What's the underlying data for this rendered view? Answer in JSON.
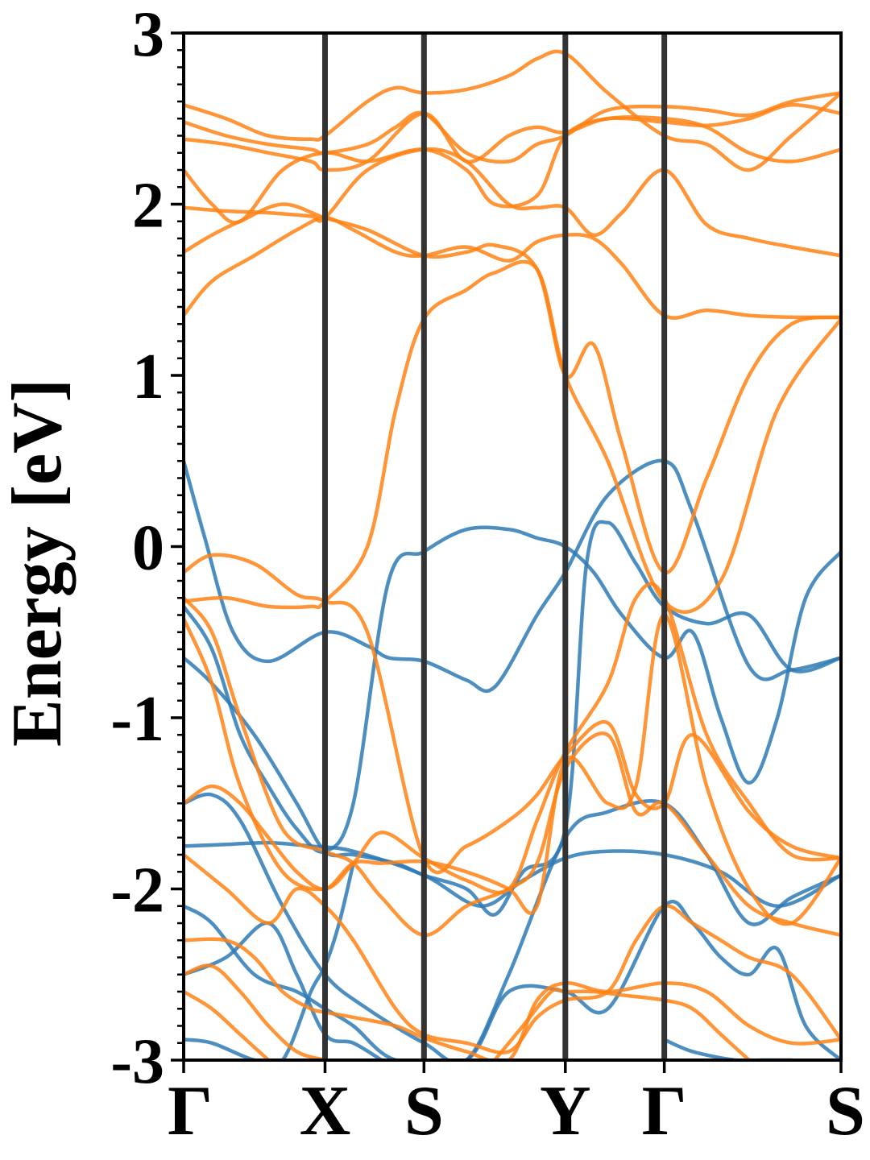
{
  "chart_data": {
    "type": "line",
    "ylabel": "Energy [eV]",
    "xlabel": "",
    "ylim": [
      -3,
      3
    ],
    "yticks": [
      "3",
      "2",
      "1",
      "0",
      "-1",
      "-2",
      "-3"
    ],
    "yticks_values": [
      3,
      2,
      1,
      0,
      -1,
      -2,
      -3
    ],
    "x_high_symmetry": [
      {
        "label": "Γ",
        "x": 0.0
      },
      {
        "label": "X",
        "x": 1.0
      },
      {
        "label": "S",
        "x": 1.7
      },
      {
        "label": "Y",
        "x": 2.7
      },
      {
        "label": "Γ",
        "x": 3.4
      },
      {
        "label": "S",
        "x": 4.65
      }
    ],
    "xlim": [
      0.0,
      4.65
    ],
    "grid": false,
    "colors": {
      "valence": "#2e7ab6",
      "conduction": "#ff8214",
      "kline": "#333333"
    },
    "series": [
      {
        "group": "valence",
        "x": [
          0.0,
          0.15,
          0.35,
          0.6,
          1.0,
          1.3,
          1.45,
          1.7,
          2.0,
          2.2,
          2.5,
          2.7,
          3.0,
          3.4,
          3.6,
          4.0,
          4.3,
          4.65
        ],
        "y": [
          0.5,
          0.05,
          -0.5,
          -0.67,
          -0.5,
          -0.58,
          -0.65,
          -0.67,
          -0.78,
          -0.82,
          -0.4,
          -0.15,
          0.3,
          0.5,
          0.2,
          -0.7,
          -0.72,
          -0.65
        ]
      },
      {
        "group": "valence",
        "x": [
          0.0,
          0.2,
          0.4,
          0.6,
          0.8,
          1.0,
          1.2,
          1.45,
          1.7,
          2.0,
          2.3,
          2.5,
          2.7,
          2.9,
          3.1,
          3.4,
          3.6,
          3.8,
          4.0,
          4.2,
          4.4,
          4.65
        ],
        "y": [
          -0.35,
          -0.6,
          -1.1,
          -1.4,
          -1.65,
          -1.78,
          -1.5,
          -0.2,
          -0.03,
          0.1,
          0.1,
          0.05,
          0.0,
          -0.15,
          -0.4,
          -0.65,
          -0.5,
          -1.0,
          -1.38,
          -1.0,
          -0.3,
          -0.03
        ]
      },
      {
        "group": "valence",
        "x": [
          0.0,
          0.2,
          0.5,
          0.8,
          1.0,
          1.2,
          1.5,
          1.7,
          2.0,
          2.2,
          2.4,
          2.7,
          2.85,
          3.0,
          3.2,
          3.4,
          3.7,
          4.0,
          4.3,
          4.65
        ],
        "y": [
          -0.65,
          -0.8,
          -1.1,
          -1.5,
          -1.78,
          -1.8,
          -1.85,
          -1.92,
          -2.0,
          -2.15,
          -1.9,
          -1.65,
          -0.1,
          0.14,
          -0.1,
          -0.35,
          -0.45,
          -0.4,
          -0.72,
          -0.65
        ]
      },
      {
        "group": "valence",
        "x": [
          0.0,
          0.3,
          0.6,
          0.9,
          1.2,
          1.7,
          2.1,
          2.4,
          2.7,
          3.0,
          3.4,
          3.8,
          4.2,
          4.65
        ],
        "y": [
          -1.75,
          -1.74,
          -1.73,
          -1.75,
          -1.78,
          -1.92,
          -2.1,
          -1.95,
          -1.82,
          -1.78,
          -1.8,
          -1.9,
          -2.1,
          -1.92
        ]
      },
      {
        "group": "valence",
        "x": [
          0.0,
          0.2,
          0.4,
          0.7,
          1.0,
          1.3,
          1.7,
          2.0,
          2.3,
          2.7,
          3.0,
          3.4,
          3.7,
          4.0,
          4.3,
          4.65
        ],
        "y": [
          -1.5,
          -1.45,
          -1.6,
          -2.1,
          -2.5,
          -2.7,
          -2.9,
          -3.0,
          -2.5,
          -1.7,
          -1.55,
          -1.5,
          -1.8,
          -2.2,
          -2.05,
          -1.92
        ]
      },
      {
        "group": "valence",
        "x": [
          0.0,
          0.2,
          0.5,
          0.8,
          1.0,
          1.2,
          1.5,
          2.0,
          2.3,
          2.7,
          3.0,
          3.4,
          3.6,
          3.8,
          4.0,
          4.2,
          4.4,
          4.65
        ],
        "y": [
          -2.1,
          -2.2,
          -2.5,
          -2.6,
          -2.7,
          -2.8,
          -3.0,
          -3.0,
          -2.6,
          -2.6,
          -2.7,
          -2.1,
          -2.2,
          -2.4,
          -2.5,
          -2.35,
          -2.8,
          -3.0
        ]
      },
      {
        "group": "valence",
        "x": [
          0.0,
          0.3,
          0.6,
          0.8,
          1.0,
          1.2,
          1.4
        ],
        "y": [
          -2.5,
          -2.4,
          -2.2,
          -2.5,
          -2.85,
          -2.9,
          -3.0
        ]
      },
      {
        "group": "valence",
        "x": [
          0.0,
          0.2,
          0.5,
          0.7,
          0.9,
          1.0,
          1.1,
          1.2
        ],
        "y": [
          -2.88,
          -2.9,
          -3.0,
          -3.0,
          -2.6,
          -2.45,
          -2.2,
          -1.85
        ]
      },
      {
        "group": "valence",
        "x": [
          3.4,
          3.6,
          3.9,
          4.1,
          4.3
        ],
        "y": [
          -2.88,
          -2.95,
          -3.0,
          -3.0,
          -3.0
        ]
      },
      {
        "group": "conduction",
        "x": [
          0.0,
          0.3,
          0.6,
          0.9,
          1.0,
          1.3,
          1.5,
          1.7,
          2.0,
          2.2,
          2.5,
          2.7,
          3.0,
          3.4,
          3.8,
          4.2,
          4.65
        ],
        "y": [
          -0.32,
          -0.3,
          -0.35,
          -0.35,
          -0.32,
          0.0,
          0.8,
          1.33,
          1.5,
          1.6,
          1.62,
          1.0,
          0.5,
          -0.32,
          -0.2,
          0.8,
          1.33
        ]
      },
      {
        "group": "conduction",
        "x": [
          0.0,
          0.2,
          0.5,
          0.8,
          1.0,
          1.2,
          1.5,
          1.7,
          2.0,
          2.3,
          2.5,
          2.7,
          2.9,
          3.1,
          3.4,
          3.7,
          4.0,
          4.3,
          4.65
        ],
        "y": [
          1.35,
          1.55,
          1.7,
          1.85,
          1.92,
          1.85,
          1.72,
          1.7,
          1.75,
          1.67,
          1.78,
          1.82,
          1.8,
          1.65,
          1.35,
          1.38,
          1.35,
          1.34,
          1.34
        ]
      },
      {
        "group": "conduction",
        "x": [
          0.0,
          0.2,
          0.4,
          0.7,
          1.0,
          1.3,
          1.7,
          2.0,
          2.2,
          2.5,
          2.7,
          2.9,
          3.1,
          3.4,
          3.7,
          4.0,
          4.3,
          4.65
        ],
        "y": [
          1.72,
          1.82,
          1.9,
          2.0,
          1.92,
          1.85,
          1.7,
          1.72,
          1.76,
          1.62,
          1.0,
          1.18,
          0.6,
          -0.15,
          0.4,
          1.0,
          1.3,
          1.34
        ]
      },
      {
        "group": "conduction",
        "x": [
          0.0,
          0.3,
          0.6,
          0.9,
          1.0,
          1.3,
          1.7,
          2.0,
          2.3,
          2.5,
          2.7,
          2.9,
          3.1,
          3.4,
          3.7,
          4.0,
          4.3,
          4.65
        ],
        "y": [
          1.98,
          1.96,
          1.95,
          1.93,
          1.92,
          2.2,
          2.32,
          2.25,
          2.0,
          1.98,
          1.98,
          1.82,
          1.95,
          2.2,
          1.88,
          1.8,
          1.75,
          1.7
        ]
      },
      {
        "group": "conduction",
        "x": [
          0.0,
          0.2,
          0.4,
          0.7,
          1.0,
          1.3,
          1.7,
          2.0,
          2.2,
          2.5,
          2.7,
          3.0,
          3.4,
          3.7,
          4.0,
          4.3,
          4.65
        ],
        "y": [
          2.2,
          2.0,
          1.9,
          2.2,
          2.3,
          2.25,
          2.32,
          2.2,
          2.0,
          2.05,
          2.4,
          2.5,
          2.5,
          2.45,
          2.3,
          2.25,
          2.32
        ]
      },
      {
        "group": "conduction",
        "x": [
          0.0,
          0.3,
          0.6,
          0.9,
          1.0,
          1.3,
          1.7,
          2.0,
          2.3,
          2.5,
          2.7,
          3.0,
          3.4,
          3.7,
          4.0,
          4.3,
          4.65
        ],
        "y": [
          2.38,
          2.35,
          2.3,
          2.25,
          2.2,
          2.25,
          2.53,
          2.25,
          2.4,
          2.45,
          2.42,
          2.5,
          2.48,
          2.46,
          2.5,
          2.58,
          2.53
        ]
      },
      {
        "group": "conduction",
        "x": [
          0.0,
          0.3,
          0.6,
          0.9,
          1.0,
          1.3,
          1.5,
          1.7,
          2.0,
          2.3,
          2.5,
          2.7,
          3.0,
          3.4,
          3.7,
          4.0,
          4.3,
          4.65
        ],
        "y": [
          2.48,
          2.4,
          2.35,
          2.32,
          2.3,
          2.35,
          2.45,
          2.53,
          2.3,
          2.25,
          2.35,
          2.4,
          2.55,
          2.57,
          2.55,
          2.52,
          2.6,
          2.65
        ]
      },
      {
        "group": "conduction",
        "x": [
          0.0,
          0.3,
          0.6,
          0.9,
          1.0,
          1.3,
          1.5,
          1.7,
          2.0,
          2.3,
          2.5,
          2.7,
          3.0,
          3.4,
          3.7,
          4.0,
          4.3,
          4.65
        ],
        "y": [
          2.58,
          2.5,
          2.4,
          2.38,
          2.4,
          2.6,
          2.68,
          2.65,
          2.67,
          2.75,
          2.85,
          2.88,
          2.65,
          2.4,
          2.35,
          2.2,
          2.4,
          2.65
        ]
      },
      {
        "group": "conduction",
        "x": [
          0.0,
          0.2,
          0.5,
          0.8,
          1.0,
          1.3,
          1.7,
          2.0,
          2.3,
          2.5,
          2.7,
          3.0,
          3.2,
          3.4,
          3.6,
          4.0,
          4.3,
          4.65
        ],
        "y": [
          -0.15,
          -0.05,
          -0.1,
          -0.28,
          -0.32,
          -0.5,
          -1.82,
          -1.75,
          -1.6,
          -1.45,
          -1.22,
          -1.03,
          -1.45,
          -1.5,
          -1.1,
          -1.55,
          -1.75,
          -1.82
        ]
      },
      {
        "group": "conduction",
        "x": [
          0.0,
          0.2,
          0.4,
          0.7,
          1.0,
          1.2,
          1.4,
          1.7,
          2.0,
          2.3,
          2.5,
          2.7,
          3.0,
          3.2,
          3.4,
          3.7,
          4.0,
          4.3,
          4.65
        ],
        "y": [
          -0.42,
          -0.8,
          -1.4,
          -1.9,
          -2.0,
          -1.85,
          -1.67,
          -1.82,
          -1.95,
          -2.0,
          -1.6,
          -1.2,
          -0.8,
          -0.3,
          -0.3,
          -1.1,
          -1.5,
          -1.8,
          -1.82
        ]
      },
      {
        "group": "conduction",
        "x": [
          0.0,
          0.2,
          0.4,
          0.7,
          1.0,
          1.2,
          1.4,
          1.7,
          2.0,
          2.3,
          2.5,
          2.7,
          3.0,
          3.2,
          3.4,
          3.7,
          4.0,
          4.3,
          4.65
        ],
        "y": [
          -0.3,
          -0.5,
          -1.0,
          -1.65,
          -1.78,
          -1.85,
          -2.05,
          -2.27,
          -2.1,
          -2.0,
          -1.85,
          -1.3,
          -1.1,
          -1.55,
          -1.5,
          -1.8,
          -2.1,
          -2.2,
          -2.27
        ]
      },
      {
        "group": "conduction",
        "x": [
          0.0,
          0.2,
          0.4,
          0.6,
          0.8,
          1.0,
          1.2,
          1.4,
          1.7,
          2.0,
          2.3,
          2.5,
          2.7,
          3.0,
          3.2,
          3.4,
          3.7,
          4.0,
          4.3,
          4.65
        ],
        "y": [
          -1.5,
          -1.4,
          -1.5,
          -1.7,
          -1.9,
          -2.0,
          -1.85,
          -1.85,
          -1.84,
          -1.9,
          -2.0,
          -2.1,
          -1.25,
          -1.5,
          -1.4,
          -0.4,
          -1.4,
          -2.0,
          -2.2,
          -1.82
        ]
      },
      {
        "group": "conduction",
        "x": [
          0.0,
          0.3,
          0.6,
          0.8,
          1.0,
          1.2,
          1.5,
          1.7,
          2.0,
          2.3,
          2.5,
          2.7,
          3.0,
          3.2,
          3.4,
          3.6,
          3.8,
          4.0,
          4.3,
          4.65
        ],
        "y": [
          -1.8,
          -2.0,
          -2.2,
          -2.0,
          -2.1,
          -2.3,
          -2.7,
          -2.85,
          -2.9,
          -2.95,
          -2.75,
          -2.65,
          -2.6,
          -2.3,
          -2.1,
          -2.2,
          -2.3,
          -2.4,
          -2.5,
          -2.88
        ]
      },
      {
        "group": "conduction",
        "x": [
          0.0,
          0.3,
          0.5,
          0.7,
          0.9,
          1.0,
          1.2,
          1.5,
          1.7,
          2.0,
          2.3,
          2.5,
          2.7,
          3.0,
          3.4,
          3.7,
          4.0,
          4.3,
          4.65
        ],
        "y": [
          -2.3,
          -2.3,
          -2.4,
          -2.6,
          -2.7,
          -2.72,
          -2.75,
          -2.8,
          -2.87,
          -2.95,
          -3.0,
          -2.65,
          -2.55,
          -2.6,
          -2.55,
          -2.6,
          -2.8,
          -2.9,
          -2.88
        ]
      },
      {
        "group": "conduction",
        "x": [
          0.0,
          0.2,
          0.4,
          0.6,
          0.8,
          1.0
        ],
        "y": [
          -2.5,
          -2.45,
          -2.6,
          -2.8,
          -2.95,
          -3.0
        ]
      },
      {
        "group": "conduction",
        "x": [
          0.0,
          0.2,
          0.4,
          0.6
        ],
        "y": [
          -2.6,
          -2.7,
          -2.85,
          -3.0
        ]
      },
      {
        "group": "conduction",
        "x": [
          2.2,
          2.4,
          2.6,
          2.7,
          2.9,
          3.1,
          3.4,
          3.6,
          3.8,
          4.0
        ],
        "y": [
          -3.0,
          -2.8,
          -2.6,
          -2.6,
          -2.6,
          -2.62,
          -2.65,
          -2.7,
          -2.85,
          -3.0
        ]
      }
    ]
  }
}
